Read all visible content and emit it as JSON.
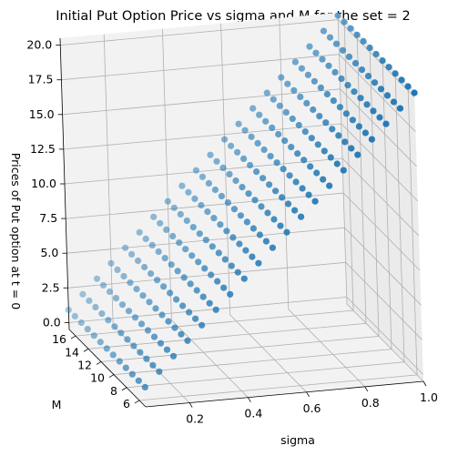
{
  "chart_data": {
    "type": "scatter",
    "projection": "3d",
    "title": "Initial Put Option Price vs sigma and M for the set = 2",
    "xlabel": "sigma",
    "ylabel": "M",
    "zlabel": "Prices of Put option at t = 0",
    "sigma_range": [
      0.05,
      1.0
    ],
    "sigma_count": 20,
    "M_range": [
      5,
      17
    ],
    "M_count": 13,
    "price_model": {
      "intercept": -0.1,
      "slope_per_sigma": 20.4
    },
    "xlim": [
      0.05,
      1.0
    ],
    "ylim": [
      5,
      17
    ],
    "zlim": [
      -0.5,
      20.5
    ],
    "x_ticks": [
      "0.2",
      "0.4",
      "0.6",
      "0.8",
      "1.0"
    ],
    "y_ticks": [
      "6",
      "8",
      "10",
      "12",
      "14",
      "16"
    ],
    "z_ticks": [
      "0.0",
      "2.5",
      "5.0",
      "7.5",
      "10.0",
      "12.5",
      "15.0",
      "17.5",
      "20.0"
    ],
    "marker_color": "#1f77b4",
    "grid": true
  }
}
